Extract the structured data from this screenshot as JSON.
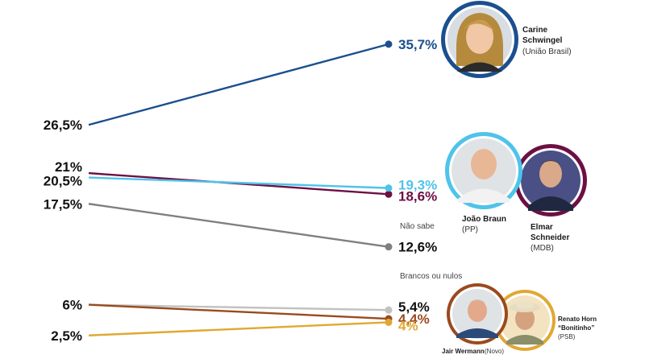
{
  "chart_data": {
    "type": "line",
    "title": "",
    "xlabel": "",
    "ylabel": "",
    "series": [
      {
        "name": "Carine Schwingel (União Brasil)",
        "start": 26.5,
        "end": 35.7,
        "start_label": "26,5%",
        "end_label": "35,7%",
        "color": "#1b4f8f"
      },
      {
        "name": "Elmar Schneider (MDB)",
        "start": 21,
        "end": 18.6,
        "start_label": "21%",
        "end_label": "18,6%",
        "color": "#6d0f45"
      },
      {
        "name": "João Braun (PP)",
        "start": 20.5,
        "end": 19.3,
        "start_label": "20,5%",
        "end_label": "19,3%",
        "color": "#4fc3ea"
      },
      {
        "name": "Não sabe",
        "start": 17.5,
        "end": 12.6,
        "start_label": "17,5%",
        "end_label": "12,6%",
        "color": "#7f7f7f"
      },
      {
        "name": "Brancos ou nulos",
        "start": 6,
        "end": 5.4,
        "start_label": "",
        "end_label": "5,4%",
        "color": "#c2c2c2"
      },
      {
        "name": "Jair Wermann (Novo)",
        "start": 6,
        "end": 4.4,
        "start_label": "6%",
        "end_label": "4,4%",
        "color": "#9a4a1e"
      },
      {
        "name": "Renato Horn \"Bonitinho\" (PSB)",
        "start": 2.5,
        "end": 4,
        "start_label": "2,5%",
        "end_label": "4%",
        "color": "#e0a832"
      }
    ]
  },
  "labels": {
    "nao_sabe": "Não sabe",
    "brancos": "Brancos ou nulos"
  },
  "candidates": {
    "carine": {
      "name1": "Carine",
      "name2": "Schwingel",
      "party": "(União Brasil)",
      "ring": "#1b4f8f"
    },
    "joao": {
      "name": "João Braun",
      "party": "(PP)",
      "ring": "#4fc3ea"
    },
    "elmar": {
      "name1": "Elmar",
      "name2": "Schneider",
      "party": "(MDB)",
      "ring": "#6d0f45"
    },
    "jair": {
      "name": "Jair Wermann",
      "party": "(Novo)",
      "ring": "#9a4a1e"
    },
    "renato": {
      "name1": "Renato Horn",
      "name2": "“Bonitinho”",
      "party": "(PSB)",
      "ring": "#e0a832"
    }
  }
}
